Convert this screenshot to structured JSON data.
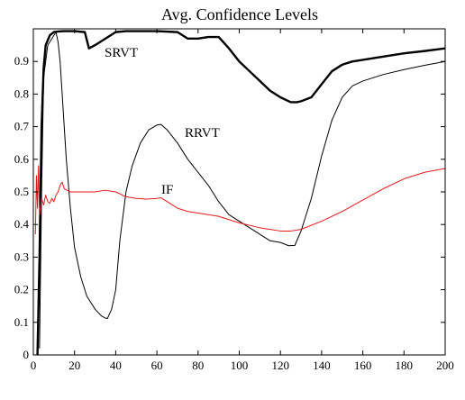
{
  "chart_data": {
    "type": "line",
    "title": "Avg. Confidence Levels",
    "xlabel": "",
    "ylabel": "",
    "xlim": [
      0,
      200
    ],
    "ylim": [
      0,
      1
    ],
    "grid": false,
    "legend": "none",
    "xticks": [
      0,
      20,
      40,
      60,
      80,
      100,
      120,
      140,
      160,
      180,
      200
    ],
    "yticks": [
      0,
      0.1,
      0.2,
      0.3,
      0.4,
      0.5,
      0.6,
      0.7,
      0.8,
      0.9
    ],
    "series": [
      {
        "name": "SRVT",
        "color": "#000000",
        "width": 2.4,
        "x": [
          2,
          3,
          4,
          5,
          6,
          8,
          10,
          12,
          15,
          20,
          25,
          27,
          30,
          35,
          40,
          45,
          50,
          60,
          70,
          75,
          80,
          85,
          90,
          95,
          100,
          105,
          110,
          115,
          120,
          125,
          128,
          130,
          135,
          140,
          145,
          150,
          155,
          160,
          170,
          180,
          190,
          200
        ],
        "values": [
          0.0,
          0.3,
          0.7,
          0.88,
          0.95,
          0.98,
          0.99,
          0.992,
          0.993,
          0.993,
          0.99,
          0.94,
          0.95,
          0.97,
          0.99,
          0.993,
          0.993,
          0.993,
          0.99,
          0.97,
          0.97,
          0.975,
          0.975,
          0.94,
          0.9,
          0.87,
          0.84,
          0.81,
          0.79,
          0.775,
          0.775,
          0.778,
          0.79,
          0.83,
          0.87,
          0.89,
          0.9,
          0.905,
          0.915,
          0.925,
          0.932,
          0.94
        ]
      },
      {
        "name": "RRVT",
        "color": "#000000",
        "width": 1,
        "x": [
          3,
          4,
          5,
          7,
          10,
          11,
          12,
          13,
          14,
          16,
          18,
          20,
          23,
          26,
          30,
          33,
          35,
          36,
          38,
          40,
          42,
          45,
          48,
          52,
          56,
          60,
          62,
          65,
          70,
          75,
          80,
          85,
          90,
          95,
          100,
          105,
          110,
          115,
          120,
          124,
          127,
          130,
          135,
          140,
          145,
          150,
          155,
          160,
          170,
          180,
          190,
          200
        ],
        "values": [
          0.02,
          0.5,
          0.85,
          0.95,
          0.98,
          0.99,
          0.96,
          0.9,
          0.8,
          0.6,
          0.45,
          0.33,
          0.24,
          0.18,
          0.14,
          0.12,
          0.113,
          0.112,
          0.14,
          0.2,
          0.35,
          0.5,
          0.58,
          0.65,
          0.69,
          0.705,
          0.707,
          0.69,
          0.65,
          0.6,
          0.56,
          0.52,
          0.47,
          0.43,
          0.41,
          0.39,
          0.37,
          0.35,
          0.345,
          0.335,
          0.336,
          0.38,
          0.48,
          0.61,
          0.72,
          0.79,
          0.825,
          0.84,
          0.86,
          0.875,
          0.888,
          0.9
        ]
      },
      {
        "name": "IF",
        "color": "#e41a1c",
        "width": 1,
        "x": [
          1,
          1.5,
          2,
          2.5,
          3,
          4,
          5,
          6,
          7,
          8,
          9,
          10,
          11,
          12,
          13,
          14,
          15,
          18,
          20,
          25,
          30,
          35,
          40,
          45,
          50,
          55,
          60,
          62,
          65,
          70,
          75,
          80,
          90,
          100,
          110,
          120,
          125,
          130,
          140,
          150,
          160,
          170,
          180,
          190,
          200
        ],
        "values": [
          0.37,
          0.55,
          0.45,
          0.58,
          0.43,
          0.48,
          0.46,
          0.49,
          0.47,
          0.465,
          0.48,
          0.47,
          0.49,
          0.5,
          0.52,
          0.53,
          0.51,
          0.5,
          0.5,
          0.5,
          0.5,
          0.505,
          0.5,
          0.485,
          0.48,
          0.478,
          0.48,
          0.482,
          0.47,
          0.45,
          0.44,
          0.435,
          0.425,
          0.405,
          0.39,
          0.38,
          0.38,
          0.385,
          0.41,
          0.44,
          0.475,
          0.51,
          0.54,
          0.56,
          0.572
        ]
      }
    ]
  }
}
